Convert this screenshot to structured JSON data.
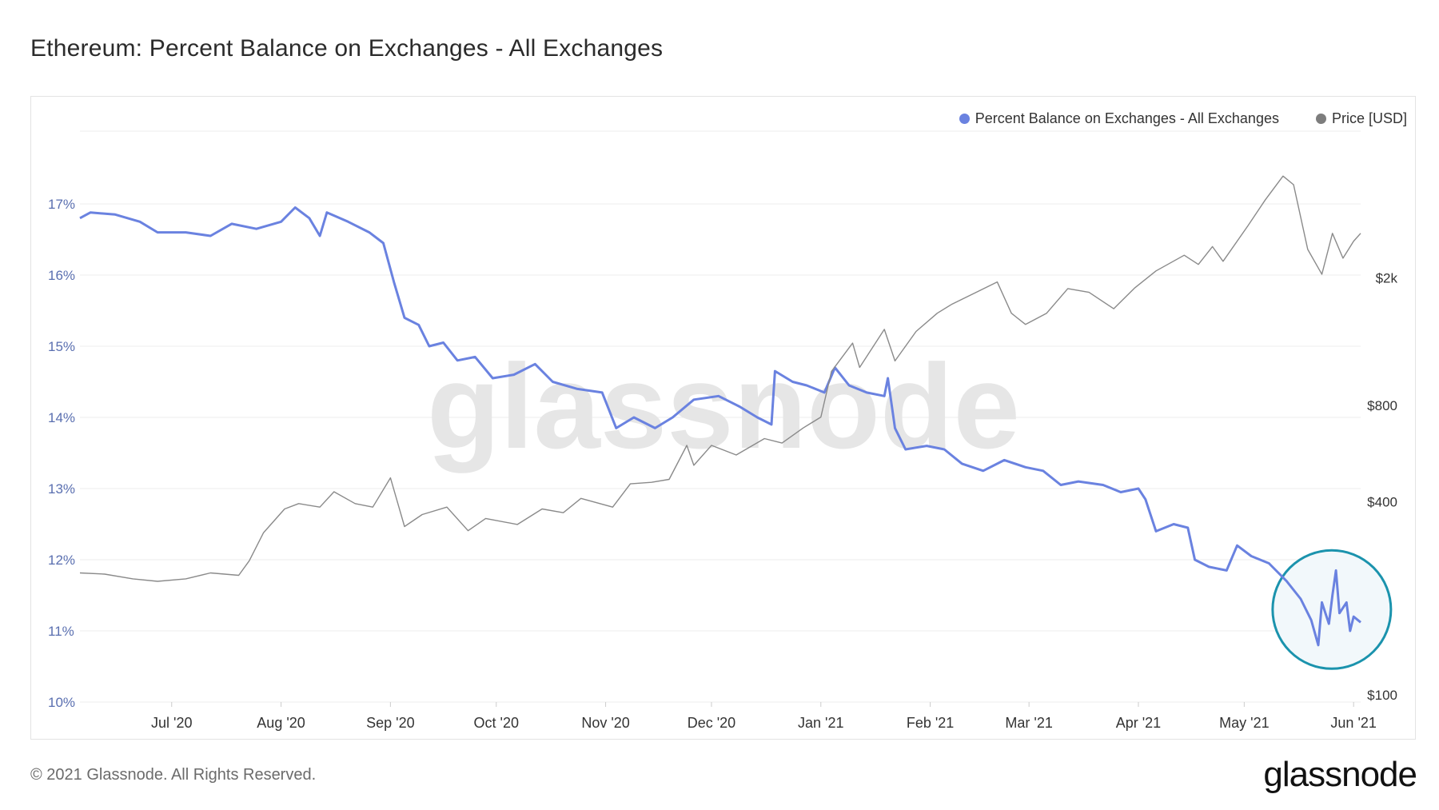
{
  "title": "Ethereum: Percent Balance on Exchanges - All Exchanges",
  "footer": "© 2021 Glassnode. All Rights Reserved.",
  "logo_text": "glassnode",
  "watermark": "glassnode",
  "colors": {
    "balance": "#6a82e0",
    "price": "#8a8a8a",
    "highlight_circle": "#1b93ad",
    "highlight_fill": "#f2f8fb",
    "grid": "#ececec"
  },
  "chart_data": {
    "type": "line",
    "title": "Ethereum: Percent Balance on Exchanges - All Exchanges",
    "grid": true,
    "legend_position": "top-right",
    "legend": [
      "Percent Balance on Exchanges - All Exchanges",
      "Price [USD]"
    ],
    "x_range": [
      "2020-06-05",
      "2021-06-03"
    ],
    "x_ticks": [
      {
        "date": "2020-07-01",
        "label": "Jul '20"
      },
      {
        "date": "2020-08-01",
        "label": "Aug '20"
      },
      {
        "date": "2020-09-01",
        "label": "Sep '20"
      },
      {
        "date": "2020-10-01",
        "label": "Oct '20"
      },
      {
        "date": "2020-11-01",
        "label": "Nov '20"
      },
      {
        "date": "2020-12-01",
        "label": "Dec '20"
      },
      {
        "date": "2021-01-01",
        "label": "Jan '21"
      },
      {
        "date": "2021-02-01",
        "label": "Feb '21"
      },
      {
        "date": "2021-03-01",
        "label": "Mar '21"
      },
      {
        "date": "2021-04-01",
        "label": "Apr '21"
      },
      {
        "date": "2021-05-01",
        "label": "May '21"
      },
      {
        "date": "2021-06-01",
        "label": "Jun '21"
      }
    ],
    "y_left": {
      "scale": "linear",
      "range": [
        10,
        17.8
      ],
      "ticks": [
        {
          "value": 10,
          "label": "10%"
        },
        {
          "value": 11,
          "label": "11%"
        },
        {
          "value": 12,
          "label": "12%"
        },
        {
          "value": 13,
          "label": "13%"
        },
        {
          "value": 14,
          "label": "14%"
        },
        {
          "value": 15,
          "label": "15%"
        },
        {
          "value": 16,
          "label": "16%"
        },
        {
          "value": 17,
          "label": "17%"
        }
      ]
    },
    "y_right": {
      "scale": "log",
      "range": [
        100,
        5000
      ],
      "ticks": [
        {
          "value": 100,
          "label": "$100"
        },
        {
          "value": 400,
          "label": "$400"
        },
        {
          "value": 800,
          "label": "$800"
        },
        {
          "value": 2000,
          "label": "$2k"
        }
      ]
    },
    "highlight": {
      "shape": "circle",
      "date_range": [
        "2021-05-14",
        "2021-06-03"
      ],
      "value_range": [
        10.6,
        12.0
      ]
    },
    "series": [
      {
        "name": "Percent Balance on Exchanges - All Exchanges",
        "axis": "left",
        "unit": "%",
        "points": [
          [
            "2020-06-05",
            16.8
          ],
          [
            "2020-06-08",
            16.88
          ],
          [
            "2020-06-15",
            16.85
          ],
          [
            "2020-06-22",
            16.75
          ],
          [
            "2020-06-27",
            16.6
          ],
          [
            "2020-07-05",
            16.6
          ],
          [
            "2020-07-12",
            16.55
          ],
          [
            "2020-07-18",
            16.72
          ],
          [
            "2020-07-25",
            16.65
          ],
          [
            "2020-08-01",
            16.75
          ],
          [
            "2020-08-05",
            16.95
          ],
          [
            "2020-08-09",
            16.8
          ],
          [
            "2020-08-12",
            16.55
          ],
          [
            "2020-08-14",
            16.88
          ],
          [
            "2020-08-20",
            16.75
          ],
          [
            "2020-08-26",
            16.6
          ],
          [
            "2020-08-30",
            16.45
          ],
          [
            "2020-09-02",
            15.9
          ],
          [
            "2020-09-05",
            15.4
          ],
          [
            "2020-09-09",
            15.3
          ],
          [
            "2020-09-12",
            15.0
          ],
          [
            "2020-09-16",
            15.05
          ],
          [
            "2020-09-20",
            14.8
          ],
          [
            "2020-09-25",
            14.85
          ],
          [
            "2020-09-30",
            14.55
          ],
          [
            "2020-10-06",
            14.6
          ],
          [
            "2020-10-12",
            14.75
          ],
          [
            "2020-10-17",
            14.5
          ],
          [
            "2020-10-24",
            14.4
          ],
          [
            "2020-10-31",
            14.35
          ],
          [
            "2020-11-04",
            13.85
          ],
          [
            "2020-11-09",
            14.0
          ],
          [
            "2020-11-15",
            13.85
          ],
          [
            "2020-11-20",
            14.0
          ],
          [
            "2020-11-26",
            14.25
          ],
          [
            "2020-12-03",
            14.3
          ],
          [
            "2020-12-09",
            14.15
          ],
          [
            "2020-12-14",
            14.0
          ],
          [
            "2020-12-18",
            13.9
          ],
          [
            "2020-12-19",
            14.65
          ],
          [
            "2020-12-24",
            14.5
          ],
          [
            "2020-12-28",
            14.45
          ],
          [
            "2021-01-02",
            14.35
          ],
          [
            "2021-01-05",
            14.7
          ],
          [
            "2021-01-09",
            14.45
          ],
          [
            "2021-01-14",
            14.35
          ],
          [
            "2021-01-19",
            14.3
          ],
          [
            "2021-01-20",
            14.55
          ],
          [
            "2021-01-22",
            13.85
          ],
          [
            "2021-01-25",
            13.55
          ],
          [
            "2021-01-31",
            13.6
          ],
          [
            "2021-02-05",
            13.55
          ],
          [
            "2021-02-10",
            13.35
          ],
          [
            "2021-02-16",
            13.25
          ],
          [
            "2021-02-22",
            13.4
          ],
          [
            "2021-02-28",
            13.3
          ],
          [
            "2021-03-05",
            13.25
          ],
          [
            "2021-03-10",
            13.05
          ],
          [
            "2021-03-15",
            13.1
          ],
          [
            "2021-03-22",
            13.05
          ],
          [
            "2021-03-27",
            12.95
          ],
          [
            "2021-04-01",
            13.0
          ],
          [
            "2021-04-03",
            12.85
          ],
          [
            "2021-04-06",
            12.4
          ],
          [
            "2021-04-11",
            12.5
          ],
          [
            "2021-04-15",
            12.45
          ],
          [
            "2021-04-17",
            12.0
          ],
          [
            "2021-04-21",
            11.9
          ],
          [
            "2021-04-26",
            11.85
          ],
          [
            "2021-04-29",
            12.2
          ],
          [
            "2021-05-03",
            12.05
          ],
          [
            "2021-05-08",
            11.95
          ],
          [
            "2021-05-13",
            11.7
          ],
          [
            "2021-05-17",
            11.45
          ],
          [
            "2021-05-20",
            11.15
          ],
          [
            "2021-05-22",
            10.8
          ],
          [
            "2021-05-23",
            11.4
          ],
          [
            "2021-05-25",
            11.1
          ],
          [
            "2021-05-26",
            11.5
          ],
          [
            "2021-05-27",
            11.85
          ],
          [
            "2021-05-28",
            11.25
          ],
          [
            "2021-05-30",
            11.4
          ],
          [
            "2021-05-31",
            11.0
          ],
          [
            "2021-06-01",
            11.2
          ],
          [
            "2021-06-03",
            11.12
          ]
        ]
      },
      {
        "name": "Price [USD]",
        "axis": "right",
        "unit": "USD",
        "points": [
          [
            "2020-06-05",
            240
          ],
          [
            "2020-06-12",
            238
          ],
          [
            "2020-06-20",
            230
          ],
          [
            "2020-06-27",
            226
          ],
          [
            "2020-07-05",
            230
          ],
          [
            "2020-07-12",
            240
          ],
          [
            "2020-07-20",
            236
          ],
          [
            "2020-07-23",
            262
          ],
          [
            "2020-07-27",
            320
          ],
          [
            "2020-08-02",
            380
          ],
          [
            "2020-08-06",
            395
          ],
          [
            "2020-08-12",
            385
          ],
          [
            "2020-08-16",
            430
          ],
          [
            "2020-08-22",
            395
          ],
          [
            "2020-08-27",
            385
          ],
          [
            "2020-09-01",
            475
          ],
          [
            "2020-09-05",
            335
          ],
          [
            "2020-09-10",
            365
          ],
          [
            "2020-09-17",
            385
          ],
          [
            "2020-09-23",
            325
          ],
          [
            "2020-09-28",
            355
          ],
          [
            "2020-10-07",
            340
          ],
          [
            "2020-10-14",
            380
          ],
          [
            "2020-10-20",
            370
          ],
          [
            "2020-10-25",
            410
          ],
          [
            "2020-11-03",
            385
          ],
          [
            "2020-11-08",
            455
          ],
          [
            "2020-11-14",
            460
          ],
          [
            "2020-11-19",
            470
          ],
          [
            "2020-11-24",
            600
          ],
          [
            "2020-11-26",
            520
          ],
          [
            "2020-12-01",
            600
          ],
          [
            "2020-12-08",
            560
          ],
          [
            "2020-12-16",
            630
          ],
          [
            "2020-12-21",
            610
          ],
          [
            "2020-12-27",
            680
          ],
          [
            "2021-01-01",
            735
          ],
          [
            "2021-01-04",
            1020
          ],
          [
            "2021-01-10",
            1250
          ],
          [
            "2021-01-12",
            1050
          ],
          [
            "2021-01-19",
            1380
          ],
          [
            "2021-01-22",
            1100
          ],
          [
            "2021-01-28",
            1360
          ],
          [
            "2021-02-03",
            1550
          ],
          [
            "2021-02-07",
            1650
          ],
          [
            "2021-02-14",
            1800
          ],
          [
            "2021-02-20",
            1940
          ],
          [
            "2021-02-24",
            1550
          ],
          [
            "2021-02-28",
            1430
          ],
          [
            "2021-03-06",
            1550
          ],
          [
            "2021-03-12",
            1850
          ],
          [
            "2021-03-18",
            1800
          ],
          [
            "2021-03-25",
            1600
          ],
          [
            "2021-03-31",
            1860
          ],
          [
            "2021-04-06",
            2100
          ],
          [
            "2021-04-14",
            2350
          ],
          [
            "2021-04-18",
            2200
          ],
          [
            "2021-04-22",
            2500
          ],
          [
            "2021-04-25",
            2250
          ],
          [
            "2021-05-02",
            2900
          ],
          [
            "2021-05-07",
            3500
          ],
          [
            "2021-05-12",
            4150
          ],
          [
            "2021-05-15",
            3900
          ],
          [
            "2021-05-19",
            2450
          ],
          [
            "2021-05-23",
            2050
          ],
          [
            "2021-05-26",
            2750
          ],
          [
            "2021-05-29",
            2300
          ],
          [
            "2021-06-01",
            2600
          ],
          [
            "2021-06-03",
            2750
          ]
        ]
      }
    ]
  }
}
